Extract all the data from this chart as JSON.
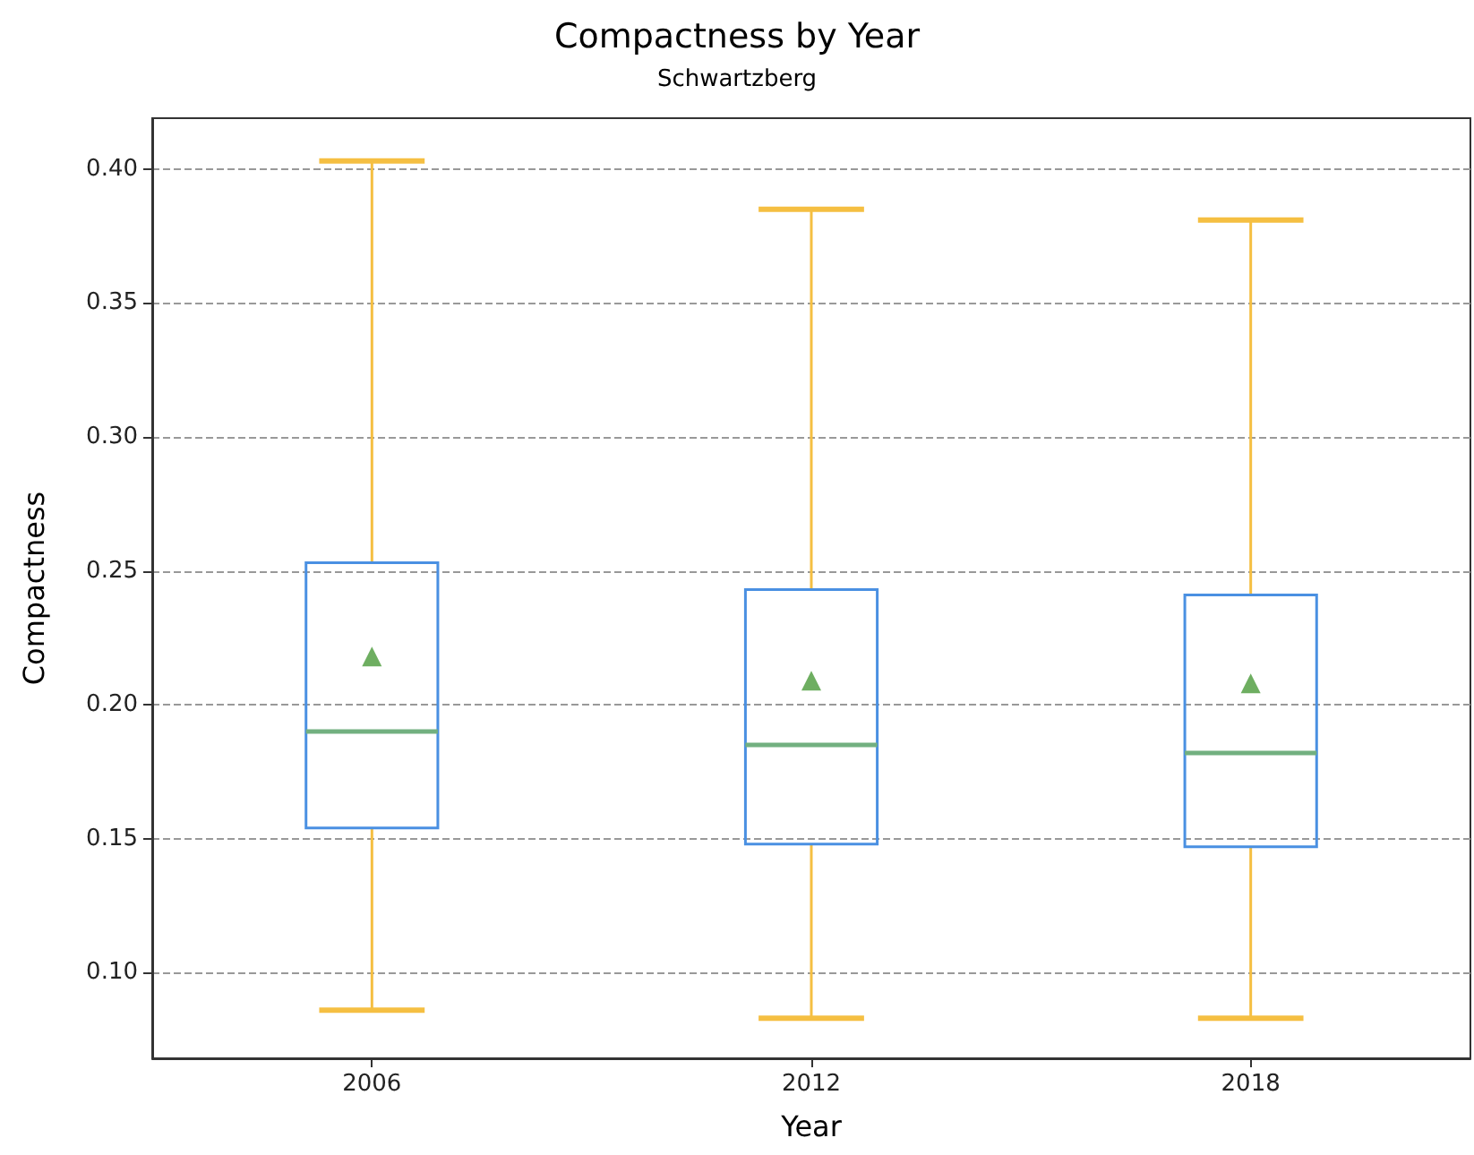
{
  "chart_data": {
    "type": "box",
    "title": "Compactness by Year",
    "subtitle": "Schwartzberg",
    "xlabel": "Year",
    "ylabel": "Compactness",
    "categories": [
      "2006",
      "2012",
      "2018"
    ],
    "series": [
      {
        "color": "#4a90e2",
        "boxes": [
          {
            "low": 0.086,
            "q1": 0.154,
            "median": 0.19,
            "q3": 0.253,
            "high": 0.403,
            "mean": 0.218
          },
          {
            "low": 0.083,
            "q1": 0.148,
            "median": 0.185,
            "q3": 0.243,
            "high": 0.385,
            "mean": 0.209
          },
          {
            "low": 0.083,
            "q1": 0.147,
            "median": 0.182,
            "q3": 0.241,
            "high": 0.381,
            "mean": 0.208
          }
        ]
      }
    ],
    "ylim": [
      0.068,
      0.419
    ],
    "yticks": [
      {
        "value": 0.1,
        "label": "0.10"
      },
      {
        "value": 0.15,
        "label": "0.15"
      },
      {
        "value": 0.2,
        "label": "0.20"
      },
      {
        "value": 0.25,
        "label": "0.25"
      },
      {
        "value": 0.3,
        "label": "0.30"
      },
      {
        "value": 0.35,
        "label": "0.35"
      },
      {
        "value": 0.4,
        "label": "0.40"
      }
    ],
    "grid": "y",
    "marker": "triangle"
  }
}
